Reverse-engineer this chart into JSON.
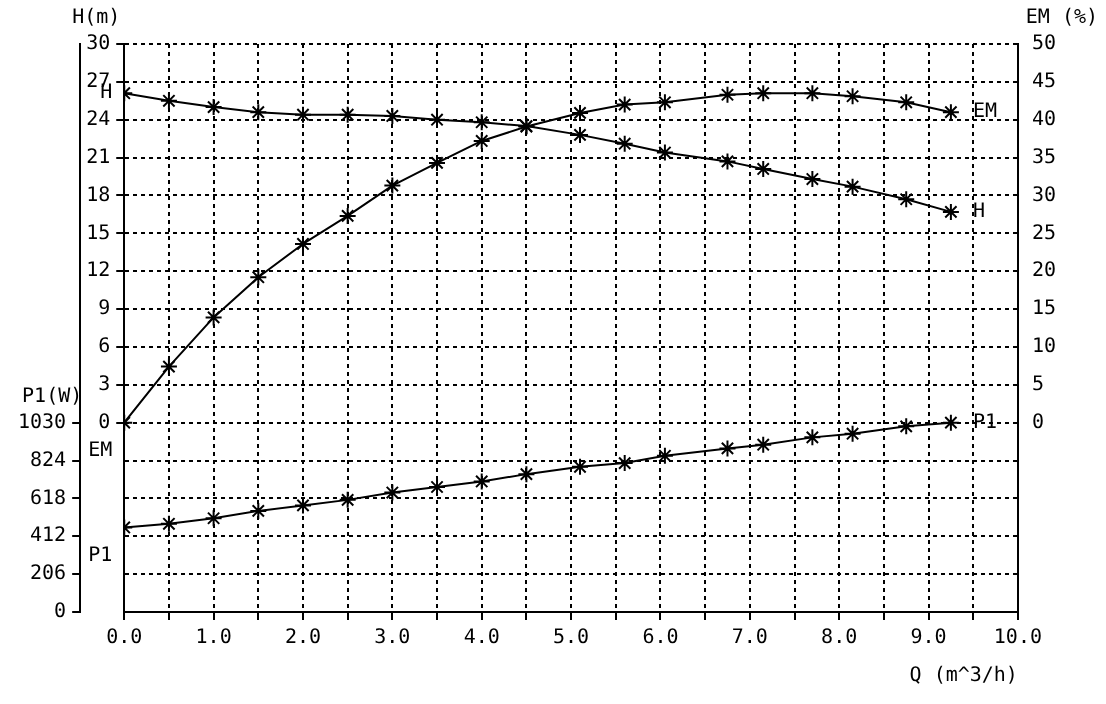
{
  "chart_data": {
    "type": "line",
    "xlabel": "Q (m^3/h)",
    "ylabel": "H(m)",
    "y2label": "EM (%)",
    "y3label": "P1(W)",
    "x": [
      0,
      0.5,
      1.0,
      1.5,
      2.0,
      2.5,
      3.0,
      3.5,
      4.0,
      4.5,
      5.1,
      5.6,
      6.05,
      6.75,
      7.15,
      7.7,
      8.15,
      8.75,
      9.25
    ],
    "series": [
      {
        "name": "H",
        "color": "#000000",
        "values": [
          26.1,
          25.5,
          25.0,
          24.6,
          24.4,
          24.4,
          24.3,
          24.0,
          23.8,
          23.5,
          22.8,
          22.1,
          21.4,
          20.7,
          20.1,
          19.3,
          18.7,
          17.7,
          16.7
        ]
      },
      {
        "name": "EM",
        "color": "#000000",
        "axis": "y2",
        "values": [
          0,
          7.4,
          13.9,
          19.2,
          23.6,
          27.3,
          31.3,
          34.3,
          37.2,
          39.1,
          40.9,
          42.0,
          42.3,
          43.3,
          43.5,
          43.5,
          43.1,
          42.3,
          41.0
        ]
      },
      {
        "name": "P1",
        "color": "#000000",
        "axis": "y3",
        "values": [
          460,
          480,
          510,
          550,
          580,
          610,
          650,
          680,
          710,
          750,
          790,
          810,
          850,
          890,
          910,
          950,
          970,
          1010,
          1030
        ]
      }
    ],
    "xlim": [
      0,
      10
    ],
    "xticks": [
      {
        "value": 0,
        "label": "0.0"
      },
      {
        "value": 0.5,
        "label": null
      },
      {
        "value": 1,
        "label": "1.0"
      },
      {
        "value": 1.5,
        "label": null
      },
      {
        "value": 2,
        "label": "2.0"
      },
      {
        "value": 2.5,
        "label": null
      },
      {
        "value": 3,
        "label": "3.0"
      },
      {
        "value": 3.5,
        "label": null
      },
      {
        "value": 4,
        "label": "4.0"
      },
      {
        "value": 4.5,
        "label": null
      },
      {
        "value": 5,
        "label": "5.0"
      },
      {
        "value": 5.5,
        "label": null
      },
      {
        "value": 6,
        "label": "6.0"
      },
      {
        "value": 6.5,
        "label": null
      },
      {
        "value": 7,
        "label": "7.0"
      },
      {
        "value": 7.5,
        "label": null
      },
      {
        "value": 8,
        "label": "8.0"
      },
      {
        "value": 8.5,
        "label": null
      },
      {
        "value": 9,
        "label": "9.0"
      },
      {
        "value": 9.5,
        "label": null
      },
      {
        "value": 10,
        "label": "10.0"
      }
    ],
    "ylim": [
      -15,
      30
    ],
    "yticks": [
      0,
      3,
      6,
      9,
      12,
      15,
      18,
      21,
      24,
      27,
      30
    ],
    "y2lim": [
      -25,
      50
    ],
    "y2ticks": [
      0,
      5,
      10,
      15,
      20,
      25,
      30,
      35,
      40,
      45,
      50
    ],
    "y3lim": [
      0,
      3090
    ],
    "y3ticks": [
      0,
      206,
      412,
      618,
      824,
      1030
    ],
    "grid": true,
    "legend": false,
    "marker": "cross",
    "line_style": "solid"
  }
}
